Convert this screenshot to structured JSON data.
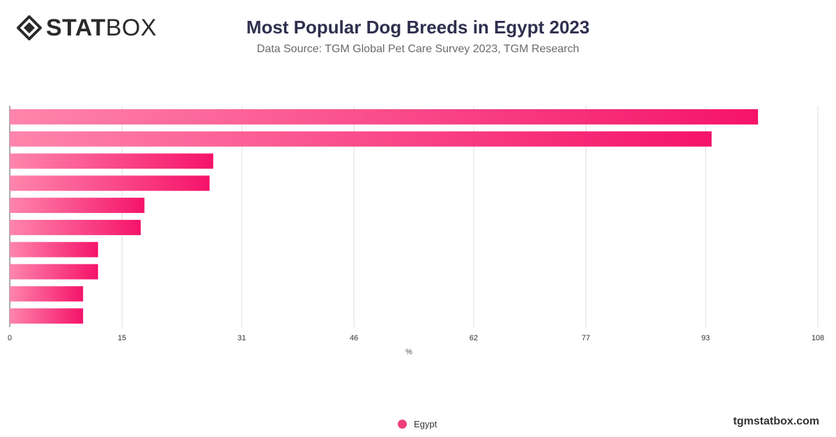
{
  "brand": {
    "logo_bold": "STAT",
    "logo_light": "BOX",
    "site": "tgmstatbox.com"
  },
  "header": {
    "title": "Most Popular Dog Breeds in Egypt 2023",
    "subtitle": "Data Source: TGM Global Pet Care Survey 2023, TGM Research"
  },
  "colors": {
    "bar_start": "#ff85ac",
    "bar_end": "#f5136a",
    "grid": "#dddddd",
    "legend": "#ee3f7a"
  },
  "chart_data": {
    "type": "bar",
    "orientation": "horizontal",
    "categories": [
      "",
      "",
      "",
      "",
      "",
      "",
      "",
      "",
      "",
      ""
    ],
    "series": [
      {
        "name": "Egypt",
        "values": [
          100,
          93.8,
          27.2,
          26.7,
          18,
          17.5,
          11.8,
          11.8,
          9.8,
          9.8
        ]
      }
    ],
    "xlabel": "%",
    "xlim": [
      0,
      108
    ],
    "ticks": [
      "0",
      "15",
      "31",
      "46",
      "62",
      "77",
      "93",
      "108"
    ],
    "grid": true,
    "legend": "bottom-center"
  }
}
